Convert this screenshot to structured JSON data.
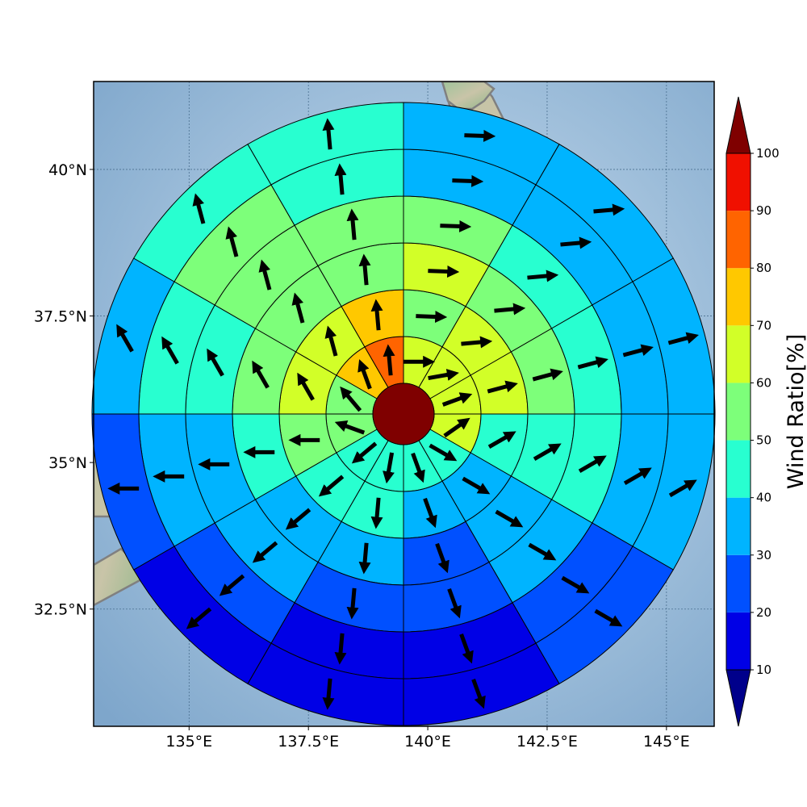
{
  "map": {
    "center_lon": 139.5,
    "center_lat": 36.1,
    "lon_range": [
      133.0,
      146.0
    ],
    "lat_range": [
      30.5,
      41.5
    ],
    "x_ticks": [
      {
        "value": 135,
        "label": "135°E"
      },
      {
        "value": 137.5,
        "label": "137.5°E"
      },
      {
        "value": 140,
        "label": "140°E"
      },
      {
        "value": 142.5,
        "label": "142.5°E"
      },
      {
        "value": 145,
        "label": "145°E"
      }
    ],
    "y_ticks": [
      {
        "value": 40,
        "label": "40°N"
      },
      {
        "value": 37.5,
        "label": "37.5°N"
      },
      {
        "value": 35,
        "label": "35°N"
      },
      {
        "value": 32.5,
        "label": "32.5°N"
      }
    ],
    "gridlines": true,
    "coastline_color": "#808080"
  },
  "colorbar": {
    "label": "Wind Ratio[%]",
    "ticks": [
      "10",
      "20",
      "30",
      "40",
      "50",
      "60",
      "70",
      "80",
      "90",
      "100"
    ],
    "levels": [
      10,
      20,
      30,
      40,
      50,
      60,
      70,
      80,
      90,
      100
    ],
    "colors": [
      "#0000e6",
      "#0050ff",
      "#00b4ff",
      "#28ffd0",
      "#7dff7a",
      "#d2ff28",
      "#ffc800",
      "#ff6400",
      "#f01000"
    ],
    "under_color": "#00008b",
    "over_color": "#7f0000",
    "extend": "both"
  },
  "chart_data": {
    "type": "polar-sector-map",
    "center_value_band": "over",
    "sectors_per_ring": 12,
    "sector_order": "starting due north, clockwise",
    "rings": [
      {
        "ring": 1,
        "values": [
          61,
          65,
          63,
          61,
          45,
          44,
          46,
          48,
          52,
          56,
          72,
          85
        ],
        "wind_dir_deg": [
          90,
          80,
          70,
          55,
          120,
          160,
          190,
          230,
          290,
          320,
          340,
          355
        ]
      },
      {
        "ring": 2,
        "values": [
          58,
          63,
          65,
          42,
          38,
          38,
          44,
          47,
          56,
          60,
          62,
          71
        ],
        "wind_dir_deg": [
          92,
          85,
          75,
          60,
          120,
          160,
          185,
          230,
          270,
          330,
          345,
          355
        ]
      },
      {
        "ring": 3,
        "values": [
          62,
          58,
          55,
          45,
          38,
          25,
          38,
          35,
          45,
          55,
          58,
          55
        ],
        "wind_dir_deg": [
          92,
          85,
          75,
          60,
          120,
          160,
          185,
          230,
          270,
          330,
          345,
          355
        ]
      },
      {
        "ring": 4,
        "values": [
          55,
          45,
          45,
          40,
          32,
          22,
          28,
          32,
          38,
          45,
          55,
          55
        ],
        "wind_dir_deg": [
          92,
          85,
          75,
          60,
          120,
          160,
          185,
          230,
          270,
          330,
          345,
          355
        ]
      },
      {
        "ring": 5,
        "values": [
          38,
          38,
          38,
          38,
          22,
          18,
          18,
          22,
          32,
          45,
          55,
          48
        ],
        "wind_dir_deg": [
          92,
          85,
          75,
          60,
          120,
          160,
          185,
          230,
          270,
          330,
          345,
          355
        ]
      },
      {
        "ring": 6,
        "values": [
          35,
          35,
          35,
          35,
          20,
          16,
          16,
          18,
          24,
          38,
          42,
          45
        ],
        "wind_dir_deg": [
          92,
          85,
          75,
          60,
          120,
          160,
          185,
          230,
          270,
          330,
          345,
          355
        ]
      }
    ]
  }
}
